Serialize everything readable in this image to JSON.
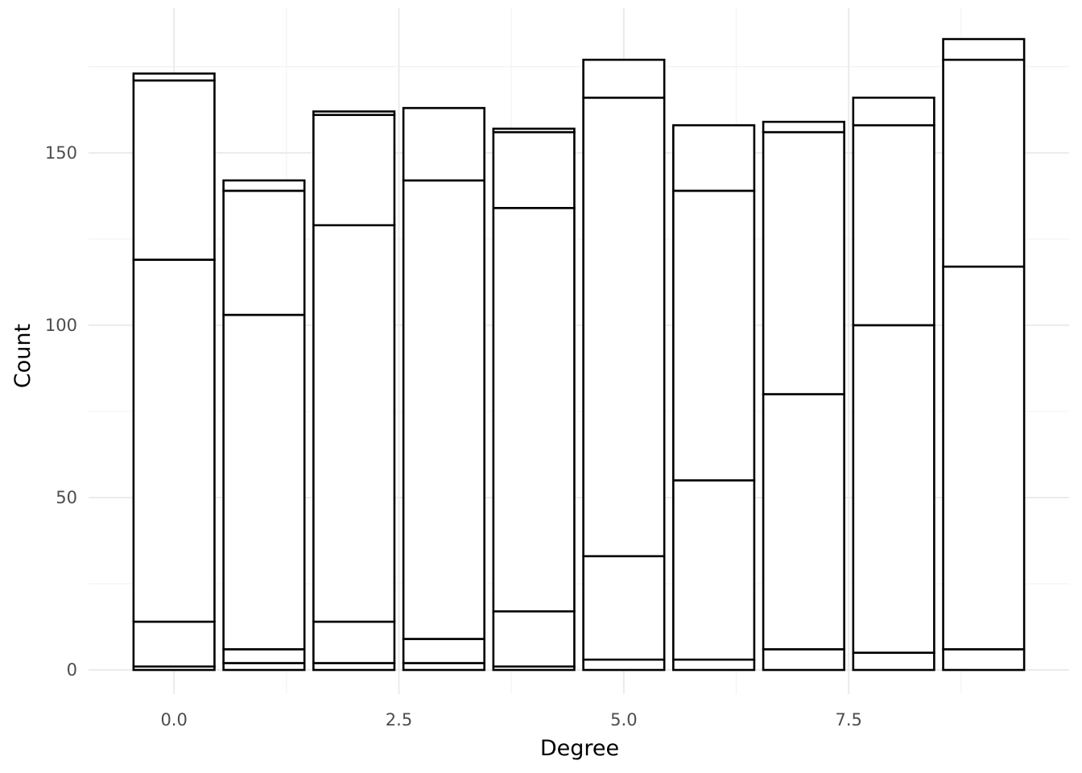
{
  "chart_data": {
    "type": "bar",
    "stacked": true,
    "xlabel": "Degree",
    "ylabel": "Count",
    "grid": true,
    "x": [
      0,
      1,
      2,
      3,
      4,
      5,
      6,
      7,
      8,
      9
    ],
    "xlim": [
      -0.95,
      9.95
    ],
    "ylim": [
      -7,
      192
    ],
    "x_ticks": [
      {
        "value": 0,
        "label": "0.0"
      },
      {
        "value": 2.5,
        "label": "2.5"
      },
      {
        "value": 5,
        "label": "5.0"
      },
      {
        "value": 7.5,
        "label": "7.5"
      }
    ],
    "y_ticks": [
      {
        "value": 0,
        "label": "0"
      },
      {
        "value": 50,
        "label": "50"
      },
      {
        "value": 100,
        "label": "100"
      },
      {
        "value": 150,
        "label": "150"
      }
    ],
    "segment_boundaries": [
      [
        0,
        1,
        14,
        119,
        171,
        173
      ],
      [
        0,
        2,
        6,
        103,
        139,
        142
      ],
      [
        0,
        2,
        14,
        129,
        161,
        162
      ],
      [
        0,
        2,
        9,
        142,
        163
      ],
      [
        0,
        1,
        17,
        134,
        156,
        157
      ],
      [
        0,
        3,
        33,
        166,
        177
      ],
      [
        0,
        3,
        55,
        139,
        158
      ],
      [
        0,
        6,
        80,
        156,
        159
      ],
      [
        0,
        5,
        100,
        158,
        166
      ],
      [
        0,
        6,
        117,
        177,
        183
      ]
    ],
    "totals": [
      173,
      142,
      162,
      163,
      157,
      177,
      158,
      159,
      166,
      183
    ]
  }
}
